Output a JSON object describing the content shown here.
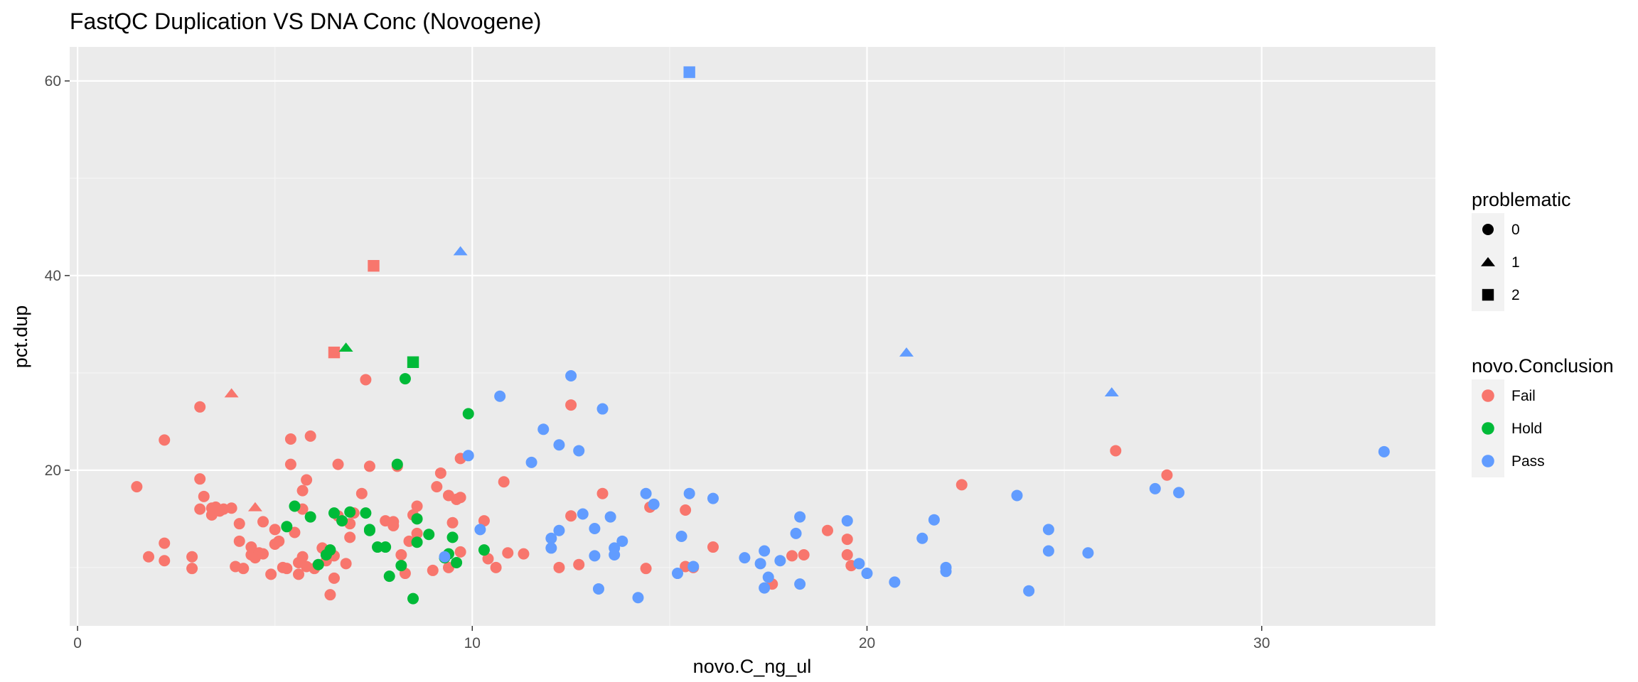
{
  "chart_data": {
    "type": "scatter",
    "title": "FastQC Duplication VS DNA Conc (Novogene)",
    "xlabel": "novo.C_ng_ul",
    "ylabel": "pct.dup",
    "xlim": [
      -0.2,
      34.4
    ],
    "ylim": [
      4,
      63.5
    ],
    "x_ticks": [
      0,
      10,
      20,
      30
    ],
    "y_ticks": [
      20,
      40,
      60
    ],
    "grid": true,
    "legend_placement": "right",
    "legends": [
      {
        "title": "problematic",
        "kind": "shape",
        "entries": [
          {
            "label": "0",
            "shape": "circle"
          },
          {
            "label": "1",
            "shape": "triangle"
          },
          {
            "label": "2",
            "shape": "square"
          }
        ]
      },
      {
        "title": "novo.Conclusion",
        "kind": "color",
        "entries": [
          {
            "label": "Fail",
            "color": "#F8766D"
          },
          {
            "label": "Hold",
            "color": "#00BA38"
          },
          {
            "label": "Pass",
            "color": "#619CFF"
          }
        ]
      }
    ],
    "series": [
      {
        "name": "Fail",
        "color": "#F8766D",
        "points": [
          [
            1.5,
            18.3,
            0
          ],
          [
            1.8,
            11.1,
            0
          ],
          [
            2.2,
            23.1,
            0
          ],
          [
            2.2,
            12.5,
            0
          ],
          [
            2.2,
            10.7,
            0
          ],
          [
            2.9,
            11.1,
            0
          ],
          [
            2.9,
            9.9,
            0
          ],
          [
            3.1,
            26.5,
            0
          ],
          [
            3.1,
            19.1,
            0
          ],
          [
            3.1,
            16.0,
            0
          ],
          [
            3.2,
            17.3,
            0
          ],
          [
            3.4,
            15.4,
            0
          ],
          [
            3.4,
            16.1,
            0
          ],
          [
            3.5,
            16.2,
            0
          ],
          [
            3.6,
            15.8,
            0
          ],
          [
            3.7,
            16.0,
            0
          ],
          [
            3.9,
            16.1,
            0
          ],
          [
            4.0,
            10.1,
            0
          ],
          [
            4.1,
            12.7,
            0
          ],
          [
            4.1,
            14.5,
            0
          ],
          [
            4.2,
            9.9,
            0
          ],
          [
            4.4,
            12.1,
            0
          ],
          [
            4.4,
            11.3,
            0
          ],
          [
            4.5,
            11.0,
            0
          ],
          [
            4.6,
            11.5,
            0
          ],
          [
            4.7,
            11.4,
            0
          ],
          [
            4.7,
            14.7,
            0
          ],
          [
            4.9,
            9.3,
            0
          ],
          [
            5.0,
            12.4,
            0
          ],
          [
            5.0,
            13.9,
            0
          ],
          [
            5.1,
            12.7,
            0
          ],
          [
            5.2,
            10.0,
            0
          ],
          [
            5.3,
            9.9,
            0
          ],
          [
            5.4,
            23.2,
            0
          ],
          [
            5.4,
            20.6,
            0
          ],
          [
            5.5,
            13.6,
            0
          ],
          [
            5.6,
            10.5,
            0
          ],
          [
            5.6,
            9.3,
            0
          ],
          [
            5.7,
            17.9,
            0
          ],
          [
            5.7,
            16.0,
            0
          ],
          [
            5.7,
            11.1,
            0
          ],
          [
            5.8,
            19.0,
            0
          ],
          [
            5.8,
            10.1,
            0
          ],
          [
            5.9,
            23.5,
            0
          ],
          [
            6.0,
            9.9,
            0
          ],
          [
            6.2,
            12.0,
            0
          ],
          [
            6.3,
            10.7,
            0
          ],
          [
            6.4,
            7.2,
            0
          ],
          [
            6.5,
            11.2,
            0
          ],
          [
            6.5,
            8.9,
            0
          ],
          [
            6.6,
            20.6,
            0
          ],
          [
            6.6,
            15.3,
            0
          ],
          [
            6.8,
            10.4,
            0
          ],
          [
            6.9,
            14.5,
            0
          ],
          [
            6.9,
            13.1,
            0
          ],
          [
            7.0,
            15.6,
            0
          ],
          [
            7.2,
            17.6,
            0
          ],
          [
            7.3,
            29.3,
            0
          ],
          [
            7.4,
            20.4,
            0
          ],
          [
            7.8,
            14.8,
            0
          ],
          [
            8.0,
            14.7,
            0
          ],
          [
            8.0,
            14.3,
            0
          ],
          [
            8.1,
            20.4,
            0
          ],
          [
            8.2,
            11.3,
            0
          ],
          [
            8.3,
            9.4,
            0
          ],
          [
            8.4,
            12.7,
            0
          ],
          [
            8.5,
            15.4,
            0
          ],
          [
            8.6,
            16.3,
            0
          ],
          [
            8.6,
            13.5,
            0
          ],
          [
            9.0,
            9.7,
            0
          ],
          [
            9.1,
            18.3,
            0
          ],
          [
            9.2,
            19.7,
            0
          ],
          [
            9.4,
            17.4,
            0
          ],
          [
            9.4,
            10.0,
            0
          ],
          [
            9.5,
            14.6,
            0
          ],
          [
            9.6,
            17.0,
            0
          ],
          [
            9.7,
            17.2,
            0
          ],
          [
            9.7,
            11.6,
            0
          ],
          [
            9.7,
            21.2,
            0
          ],
          [
            10.3,
            14.8,
            0
          ],
          [
            10.4,
            10.9,
            0
          ],
          [
            10.6,
            10.0,
            0
          ],
          [
            10.8,
            18.8,
            0
          ],
          [
            10.9,
            11.5,
            0
          ],
          [
            11.3,
            11.4,
            0
          ],
          [
            12.2,
            10.0,
            0
          ],
          [
            12.5,
            26.7,
            0
          ],
          [
            12.5,
            15.3,
            0
          ],
          [
            12.7,
            10.3,
            0
          ],
          [
            13.3,
            17.6,
            0
          ],
          [
            14.4,
            9.9,
            0
          ],
          [
            14.5,
            16.2,
            0
          ],
          [
            15.4,
            15.9,
            0
          ],
          [
            15.4,
            10.1,
            0
          ],
          [
            15.6,
            10.0,
            0
          ],
          [
            16.1,
            12.1,
            0
          ],
          [
            17.6,
            8.3,
            0
          ],
          [
            18.1,
            11.2,
            0
          ],
          [
            18.4,
            11.3,
            0
          ],
          [
            19.0,
            13.8,
            0
          ],
          [
            19.5,
            12.9,
            0
          ],
          [
            19.5,
            11.3,
            0
          ],
          [
            19.6,
            10.2,
            0
          ],
          [
            22.4,
            18.5,
            0
          ],
          [
            26.3,
            22.0,
            0
          ],
          [
            27.6,
            19.5,
            0
          ],
          [
            3.9,
            27.9,
            1
          ],
          [
            4.5,
            16.2,
            1
          ],
          [
            6.5,
            32.1,
            2
          ],
          [
            7.5,
            41.0,
            2
          ]
        ]
      },
      {
        "name": "Hold",
        "color": "#00BA38",
        "points": [
          [
            5.3,
            14.2,
            0
          ],
          [
            5.5,
            16.3,
            0
          ],
          [
            5.9,
            15.2,
            0
          ],
          [
            6.1,
            10.3,
            0
          ],
          [
            6.3,
            11.3,
            0
          ],
          [
            6.4,
            11.8,
            0
          ],
          [
            6.5,
            15.6,
            0
          ],
          [
            6.7,
            14.8,
            0
          ],
          [
            6.9,
            15.7,
            0
          ],
          [
            7.3,
            15.6,
            0
          ],
          [
            7.4,
            13.8,
            0
          ],
          [
            7.4,
            13.9,
            0
          ],
          [
            7.6,
            12.1,
            0
          ],
          [
            7.8,
            12.1,
            0
          ],
          [
            7.9,
            9.1,
            0
          ],
          [
            8.1,
            20.6,
            0
          ],
          [
            8.2,
            10.2,
            0
          ],
          [
            8.3,
            29.4,
            0
          ],
          [
            8.6,
            15.0,
            0
          ],
          [
            8.6,
            12.6,
            0
          ],
          [
            8.5,
            6.8,
            0
          ],
          [
            8.9,
            13.4,
            0
          ],
          [
            9.3,
            11.0,
            0
          ],
          [
            9.4,
            11.4,
            0
          ],
          [
            9.5,
            13.1,
            0
          ],
          [
            9.6,
            10.5,
            0
          ],
          [
            9.9,
            25.8,
            0
          ],
          [
            10.3,
            11.8,
            0
          ],
          [
            6.8,
            32.6,
            1
          ],
          [
            8.5,
            31.1,
            2
          ]
        ]
      },
      {
        "name": "Pass",
        "color": "#619CFF",
        "points": [
          [
            9.3,
            11.1,
            0
          ],
          [
            9.9,
            21.5,
            0
          ],
          [
            10.2,
            13.9,
            0
          ],
          [
            10.7,
            27.6,
            0
          ],
          [
            11.5,
            20.8,
            0
          ],
          [
            11.8,
            24.2,
            0
          ],
          [
            12.0,
            13.0,
            0
          ],
          [
            12.0,
            12.0,
            0
          ],
          [
            12.2,
            22.6,
            0
          ],
          [
            12.2,
            13.8,
            0
          ],
          [
            12.5,
            29.7,
            0
          ],
          [
            12.7,
            22.0,
            0
          ],
          [
            12.8,
            15.5,
            0
          ],
          [
            13.1,
            11.2,
            0
          ],
          [
            13.1,
            14.0,
            0
          ],
          [
            13.2,
            7.8,
            0
          ],
          [
            13.3,
            26.3,
            0
          ],
          [
            13.5,
            15.2,
            0
          ],
          [
            13.6,
            11.3,
            0
          ],
          [
            13.6,
            12.0,
            0
          ],
          [
            13.8,
            12.7,
            0
          ],
          [
            14.2,
            6.9,
            0
          ],
          [
            14.4,
            17.6,
            0
          ],
          [
            14.6,
            16.5,
            0
          ],
          [
            15.2,
            9.4,
            0
          ],
          [
            15.3,
            13.2,
            0
          ],
          [
            15.5,
            17.6,
            0
          ],
          [
            15.6,
            10.1,
            0
          ],
          [
            16.1,
            17.1,
            0
          ],
          [
            16.9,
            11.0,
            0
          ],
          [
            17.3,
            10.4,
            0
          ],
          [
            17.4,
            11.7,
            0
          ],
          [
            17.4,
            7.9,
            0
          ],
          [
            17.5,
            9.0,
            0
          ],
          [
            17.8,
            10.7,
            0
          ],
          [
            18.2,
            13.5,
            0
          ],
          [
            18.3,
            8.3,
            0
          ],
          [
            18.3,
            15.2,
            0
          ],
          [
            19.5,
            14.8,
            0
          ],
          [
            19.8,
            10.4,
            0
          ],
          [
            20.0,
            9.4,
            0
          ],
          [
            20.7,
            8.5,
            0
          ],
          [
            21.4,
            13.0,
            0
          ],
          [
            21.7,
            14.9,
            0
          ],
          [
            22.0,
            9.6,
            0
          ],
          [
            22.0,
            10.0,
            0
          ],
          [
            23.8,
            17.4,
            0
          ],
          [
            24.1,
            7.6,
            0
          ],
          [
            24.6,
            11.7,
            0
          ],
          [
            24.6,
            13.9,
            0
          ],
          [
            25.6,
            11.5,
            0
          ],
          [
            27.3,
            18.1,
            0
          ],
          [
            27.9,
            17.7,
            0
          ],
          [
            33.1,
            21.9,
            0
          ],
          [
            9.7,
            42.5,
            1
          ],
          [
            21.0,
            32.1,
            1
          ],
          [
            26.2,
            28.0,
            1
          ],
          [
            15.5,
            60.9,
            2
          ]
        ]
      }
    ]
  }
}
